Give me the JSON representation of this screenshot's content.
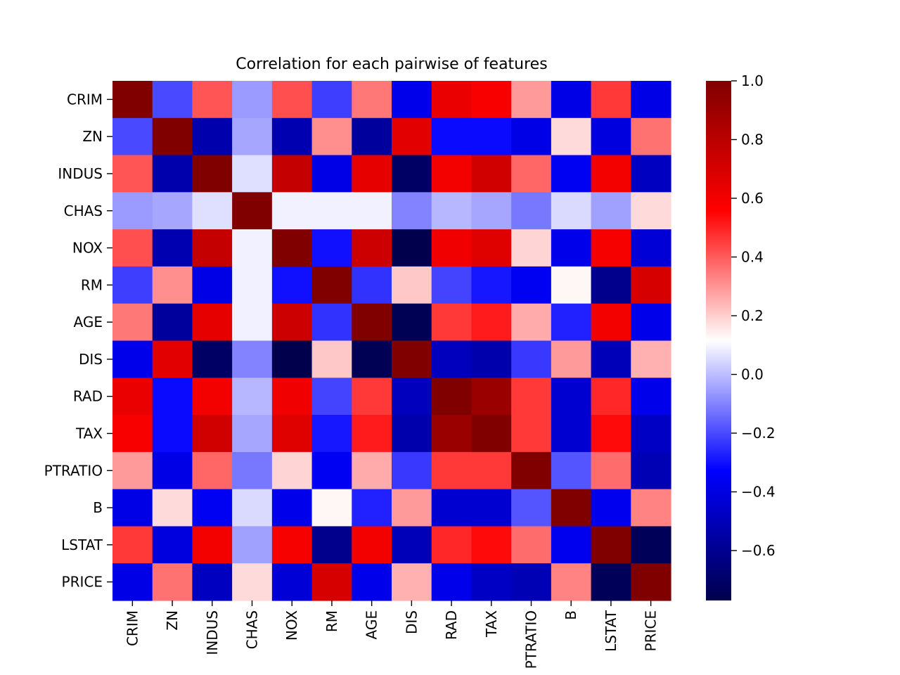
{
  "chart_data": {
    "type": "heatmap",
    "title": "Correlation for each pairwise of features",
    "xlabel": "",
    "ylabel": "",
    "labels": [
      "CRIM",
      "ZN",
      "INDUS",
      "CHAS",
      "NOX",
      "RM",
      "AGE",
      "DIS",
      "RAD",
      "TAX",
      "PTRATIO",
      "B",
      "LSTAT",
      "PRICE"
    ],
    "matrix": [
      [
        1.0,
        -0.2,
        0.41,
        -0.06,
        0.42,
        -0.22,
        0.35,
        -0.38,
        0.63,
        0.58,
        0.29,
        -0.39,
        0.46,
        -0.39
      ],
      [
        -0.2,
        1.0,
        -0.53,
        -0.04,
        -0.52,
        0.31,
        -0.57,
        0.66,
        -0.31,
        -0.31,
        -0.39,
        0.18,
        -0.41,
        0.36
      ],
      [
        0.41,
        -0.53,
        1.0,
        0.06,
        0.76,
        -0.39,
        0.64,
        -0.71,
        0.6,
        0.72,
        0.38,
        -0.36,
        0.6,
        -0.48
      ],
      [
        -0.06,
        -0.04,
        0.06,
        1.0,
        0.09,
        0.09,
        0.09,
        -0.1,
        -0.01,
        -0.04,
        -0.12,
        0.05,
        -0.05,
        0.18
      ],
      [
        0.42,
        -0.52,
        0.76,
        0.09,
        1.0,
        -0.3,
        0.73,
        -0.77,
        0.61,
        0.67,
        0.19,
        -0.38,
        0.59,
        -0.43
      ],
      [
        -0.22,
        0.31,
        -0.39,
        0.09,
        -0.3,
        1.0,
        -0.24,
        0.21,
        -0.21,
        -0.29,
        -0.36,
        0.13,
        -0.61,
        0.7
      ],
      [
        0.35,
        -0.57,
        0.64,
        0.09,
        0.73,
        -0.24,
        1.0,
        -0.75,
        0.46,
        0.51,
        0.26,
        -0.27,
        0.6,
        -0.38
      ],
      [
        -0.38,
        0.66,
        -0.71,
        -0.1,
        -0.77,
        0.21,
        -0.75,
        1.0,
        -0.49,
        -0.53,
        -0.23,
        0.29,
        -0.5,
        0.25
      ],
      [
        0.63,
        -0.31,
        0.6,
        -0.01,
        0.61,
        -0.21,
        0.46,
        -0.49,
        1.0,
        0.91,
        0.46,
        -0.44,
        0.49,
        -0.38
      ],
      [
        0.58,
        -0.31,
        0.72,
        -0.04,
        0.67,
        -0.29,
        0.51,
        -0.53,
        0.91,
        1.0,
        0.46,
        -0.44,
        0.54,
        -0.47
      ],
      [
        0.29,
        -0.39,
        0.38,
        -0.12,
        0.19,
        -0.36,
        0.26,
        -0.23,
        0.46,
        0.46,
        1.0,
        -0.18,
        0.37,
        -0.51
      ],
      [
        -0.39,
        0.18,
        -0.36,
        0.05,
        -0.38,
        0.13,
        -0.27,
        0.29,
        -0.44,
        -0.44,
        -0.18,
        1.0,
        -0.37,
        0.33
      ],
      [
        0.46,
        -0.41,
        0.6,
        -0.05,
        0.59,
        -0.61,
        0.6,
        -0.5,
        0.49,
        0.54,
        0.37,
        -0.37,
        1.0,
        -0.74
      ],
      [
        -0.39,
        0.36,
        -0.48,
        0.18,
        -0.43,
        0.7,
        -0.38,
        0.25,
        -0.38,
        -0.47,
        -0.51,
        0.33,
        -0.74,
        1.0
      ]
    ],
    "colormap": "seismic",
    "colormap_stops": [
      "#00004c",
      "#0000ff",
      "#ffffff",
      "#ff0000",
      "#800000"
    ],
    "vmin": -0.77,
    "vmax": 1.0,
    "colorbar_ticks": [
      {
        "value": 1.0,
        "label": "1.0"
      },
      {
        "value": 0.8,
        "label": "0.8"
      },
      {
        "value": 0.6,
        "label": "0.6"
      },
      {
        "value": 0.4,
        "label": "0.4"
      },
      {
        "value": 0.2,
        "label": "0.2"
      },
      {
        "value": 0.0,
        "label": "0.0"
      },
      {
        "value": -0.2,
        "label": "−0.2"
      },
      {
        "value": -0.4,
        "label": "−0.4"
      },
      {
        "value": -0.6,
        "label": "−0.6"
      }
    ],
    "grid": false,
    "legend": "colorbar-right"
  }
}
